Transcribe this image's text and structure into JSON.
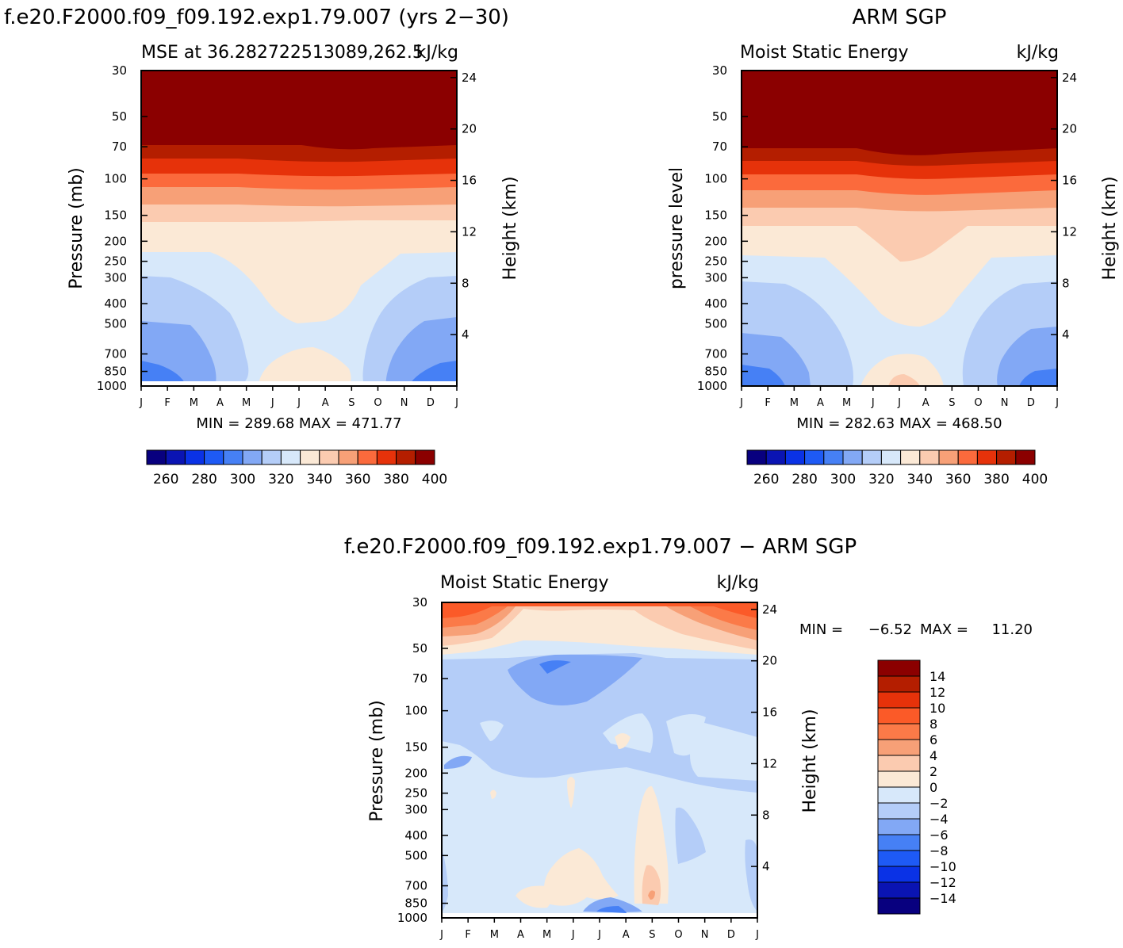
{
  "panels": [
    {
      "id": "model",
      "title_left": "f.e20.F2000.f09_f09.192.exp1.79.007 (yrs 2−30)",
      "subtitle_left": "MSE at 36.282722513089,262.5",
      "subtitle_right": "kJ/kg",
      "left_label": "Pressure (mb)",
      "right_label": "Height (km)",
      "minmax": "MIN = 289.68 MAX = 471.77"
    },
    {
      "id": "obs",
      "title_center": "ARM SGP",
      "subtitle_left": "Moist Static Energy",
      "subtitle_right": "kJ/kg",
      "left_label": "pressure level",
      "right_label": "Height (km)",
      "minmax": "MIN = 282.63 MAX = 468.50"
    },
    {
      "id": "diff",
      "title_center": "f.e20.F2000.f09_f09.192.exp1.79.007 − ARM SGP",
      "subtitle_left": "Moist Static Energy",
      "subtitle_right": "kJ/kg",
      "left_label": "Pressure (mb)",
      "right_label": "Height (km)",
      "minmax_min": "MIN =",
      "minmax_min_val": "−6.52",
      "minmax_max": "MAX =",
      "minmax_max_val": "11.20"
    }
  ],
  "chart_data": [
    {
      "type": "heatmap",
      "title": "f.e20.F2000.f09_f09.192.exp1.79.007 (yrs 2−30)",
      "subtitle": "MSE at 36.282722513089,262.5",
      "units": "kJ/kg",
      "x": [
        "J",
        "F",
        "M",
        "A",
        "M",
        "J",
        "J",
        "A",
        "S",
        "O",
        "N",
        "D",
        "J"
      ],
      "y_pressure_ticks": [
        "30",
        "50",
        "70",
        "100",
        "150",
        "200",
        "250",
        "300",
        "400",
        "500",
        "700",
        "850",
        "1000"
      ],
      "y_height_ticks": [
        "24",
        "20",
        "16",
        "12",
        "8",
        "4"
      ],
      "xlabel": "",
      "ylabel": "Pressure (mb)",
      "ylabel_right": "Height (km)",
      "min": 289.68,
      "max": 471.77,
      "colorbar_levels": [
        260,
        270,
        280,
        290,
        300,
        310,
        320,
        330,
        340,
        350,
        360,
        370,
        380,
        390,
        400
      ],
      "colorbar_labels": [
        "260",
        "280",
        "300",
        "320",
        "340",
        "360",
        "380",
        "400"
      ]
    },
    {
      "type": "heatmap",
      "title": "ARM SGP",
      "subtitle": "Moist Static Energy",
      "units": "kJ/kg",
      "x": [
        "J",
        "F",
        "M",
        "A",
        "M",
        "J",
        "J",
        "A",
        "S",
        "O",
        "N",
        "D",
        "J"
      ],
      "y_pressure_ticks": [
        "30",
        "50",
        "70",
        "100",
        "150",
        "200",
        "250",
        "300",
        "400",
        "500",
        "700",
        "850",
        "1000"
      ],
      "y_height_ticks": [
        "24",
        "20",
        "16",
        "12",
        "8",
        "4"
      ],
      "xlabel": "",
      "ylabel": "pressure level",
      "ylabel_right": "Height (km)",
      "min": 282.63,
      "max": 468.5,
      "colorbar_levels": [
        260,
        270,
        280,
        290,
        300,
        310,
        320,
        330,
        340,
        350,
        360,
        370,
        380,
        390,
        400
      ],
      "colorbar_labels": [
        "260",
        "280",
        "300",
        "320",
        "340",
        "360",
        "380",
        "400"
      ]
    },
    {
      "type": "heatmap",
      "title": "f.e20.F2000.f09_f09.192.exp1.79.007 − ARM SGP",
      "subtitle": "Moist Static Energy",
      "units": "kJ/kg",
      "x": [
        "J",
        "F",
        "M",
        "A",
        "M",
        "J",
        "J",
        "A",
        "S",
        "O",
        "N",
        "D",
        "J"
      ],
      "y_pressure_ticks": [
        "30",
        "50",
        "70",
        "100",
        "150",
        "200",
        "250",
        "300",
        "400",
        "500",
        "700",
        "850",
        "1000"
      ],
      "y_height_ticks": [
        "24",
        "20",
        "16",
        "12",
        "8",
        "4"
      ],
      "xlabel": "",
      "ylabel": "Pressure (mb)",
      "ylabel_right": "Height (km)",
      "min": -6.52,
      "max": 11.2,
      "colorbar_levels": [
        14,
        12,
        10,
        8,
        6,
        4,
        2,
        0,
        -2,
        -4,
        -6,
        -8,
        -10,
        -12,
        -14
      ],
      "colorbar_labels": [
        "14",
        "12",
        "10",
        "8",
        "6",
        "4",
        "2",
        "0",
        "−2",
        "−4",
        "−6",
        "−8",
        "−10",
        "−12",
        "−14"
      ]
    }
  ],
  "colors": {
    "abs_scale": [
      "#08007f",
      "#0a14b3",
      "#0a32e6",
      "#1e5af5",
      "#4680f5",
      "#82a8f5",
      "#b4cdf8",
      "#d7e8fa",
      "#fbe9d6",
      "#fbcbb0",
      "#f7a077",
      "#fb6a3c",
      "#e6320a",
      "#b41e00",
      "#8b0000"
    ],
    "diff_scale": [
      "#8b0000",
      "#b41e00",
      "#e6320a",
      "#fb5a28",
      "#fb7a48",
      "#f7a077",
      "#fbcbb0",
      "#fbe9d6",
      "#d7e8fa",
      "#b4cdf8",
      "#82a8f5",
      "#4680f5",
      "#1e5af5",
      "#0a32e6",
      "#0a14b3",
      "#08007f"
    ]
  }
}
